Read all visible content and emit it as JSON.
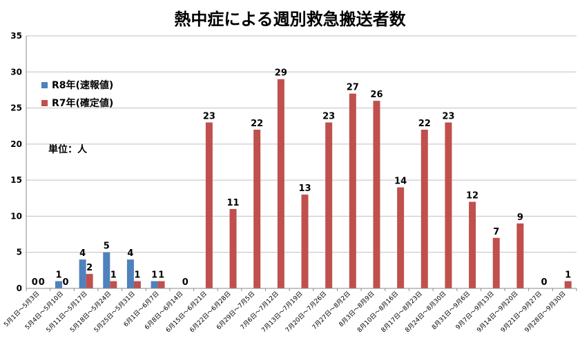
{
  "chart_data": {
    "type": "bar",
    "title": "熱中症による週別救急搬送者数",
    "unit_label": "単位：人",
    "ylim": [
      0,
      35
    ],
    "yticks": [
      0,
      5,
      10,
      15,
      20,
      25,
      30,
      35
    ],
    "grid": true,
    "legend_position": "top-left",
    "categories": [
      "5月1日～5月3日",
      "5月4日～5月10日",
      "5月11日～5月17日",
      "5月18日～5月24日",
      "5月25日～5月31日",
      "6月1日～6月7日",
      "6月8日～6月14日",
      "6月15日～6月21日",
      "6月22日～6月28日",
      "6月29日～7月5日",
      "7月6日～7月12日",
      "7月13日～7月19日",
      "7月20日～7月26日",
      "7月27日～8月2日",
      "8月3日～8月9日",
      "8月10日～8月16日",
      "8月17日～8月23日",
      "8月24日～8月30日",
      "8月31日～9月6日",
      "9月7日～9月13日",
      "9月14日～9月20日",
      "9月21日～9月27日",
      "9月28日～9月30日"
    ],
    "series": [
      {
        "name": "R8年(速報値)",
        "color": "#4F81BD",
        "values": [
          0,
          1,
          4,
          5,
          4,
          1,
          null,
          null,
          null,
          null,
          null,
          null,
          null,
          null,
          null,
          null,
          null,
          null,
          null,
          null,
          null,
          null,
          null
        ]
      },
      {
        "name": "R7年(確定値)",
        "color": "#C0504D",
        "values": [
          0,
          0,
          2,
          1,
          1,
          1,
          0,
          23,
          11,
          22,
          29,
          13,
          23,
          27,
          26,
          14,
          22,
          23,
          12,
          7,
          9,
          0,
          1
        ]
      }
    ]
  }
}
